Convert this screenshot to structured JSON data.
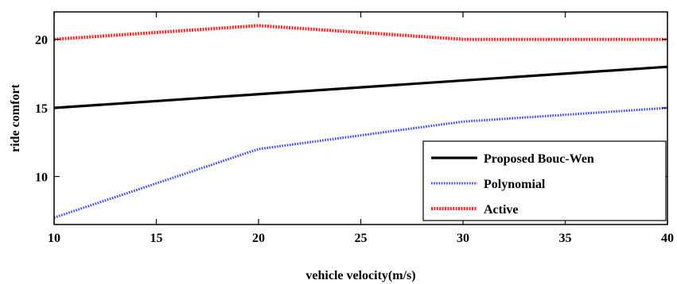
{
  "chart_data": {
    "type": "line",
    "title": "",
    "xlabel": "vehicle velocity(m/s)",
    "ylabel": "ride comfort",
    "xlim": [
      10,
      40
    ],
    "ylim": [
      6.5,
      22
    ],
    "xticks": [
      10,
      15,
      20,
      25,
      30,
      35,
      40
    ],
    "yticks": [
      10,
      15,
      20
    ],
    "grid": false,
    "legend_position": "bottom-right",
    "series": [
      {
        "name": "Proposed Bouc-Wen",
        "color": "#000000",
        "style": "solid",
        "x": [
          10,
          20,
          30,
          40
        ],
        "y": [
          15,
          16,
          17,
          18
        ]
      },
      {
        "name": "Polynomial",
        "color": "#3344ff",
        "style": "dotted",
        "x": [
          10,
          20,
          30,
          40
        ],
        "y": [
          7,
          12,
          14,
          15
        ]
      },
      {
        "name": "Active",
        "color": "#ff2222",
        "style": "dashdot",
        "x": [
          10,
          20,
          30,
          40
        ],
        "y": [
          20,
          21,
          20,
          20
        ]
      }
    ]
  }
}
